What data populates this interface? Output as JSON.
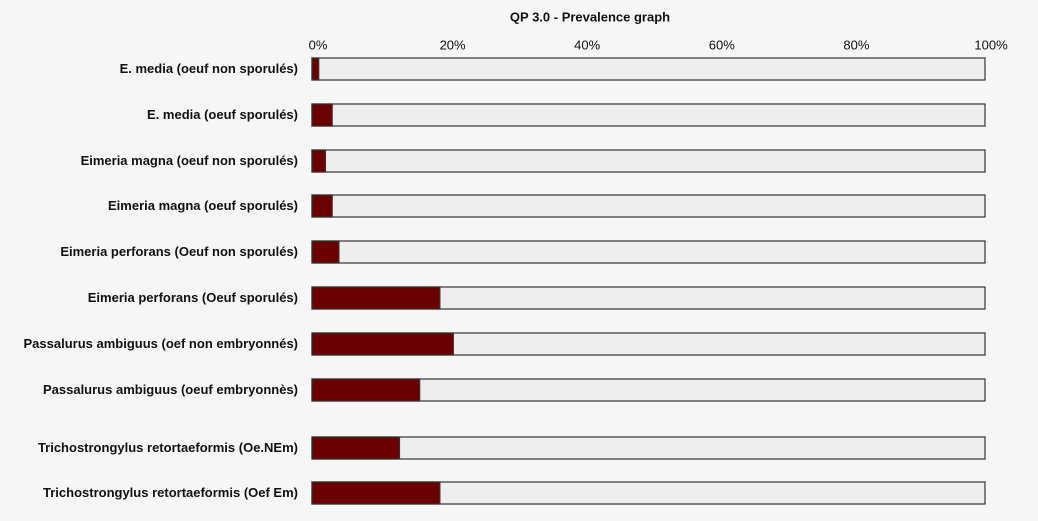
{
  "chart_data": {
    "type": "bar",
    "orientation": "horizontal",
    "title": "QP 3.0 - Prevalence graph",
    "categories": [
      "E. media (oeuf non sporulés)",
      "E. media (oeuf sporulés)",
      "Eimeria magna (oeuf non sporulés)",
      "Eimeria magna (oeuf sporulés)",
      "Eimeria perforans (Oeuf non sporulés)",
      "Eimeria perforans (Oeuf sporulés)",
      "Passalurus ambiguus (oef non embryonnés)",
      "Passalurus ambiguus (oeuf embryonnès)",
      "Trichostrongylus retortaeformis (Oe.NEm)",
      "Trichostrongylus retortaeformis (Oef Em)"
    ],
    "values": [
      1,
      3,
      2,
      3,
      4,
      19,
      21,
      16,
      13,
      19
    ],
    "color": "#6b0000",
    "track_color": "#eeeeee",
    "xlim": [
      0,
      100
    ],
    "xticks": [
      {
        "value": 0,
        "label": "0%"
      },
      {
        "value": 20,
        "label": "20%"
      },
      {
        "value": 40,
        "label": "40%"
      },
      {
        "value": 60,
        "label": "60%"
      },
      {
        "value": 80,
        "label": "80%"
      },
      {
        "value": 100,
        "label": "100%"
      }
    ]
  }
}
